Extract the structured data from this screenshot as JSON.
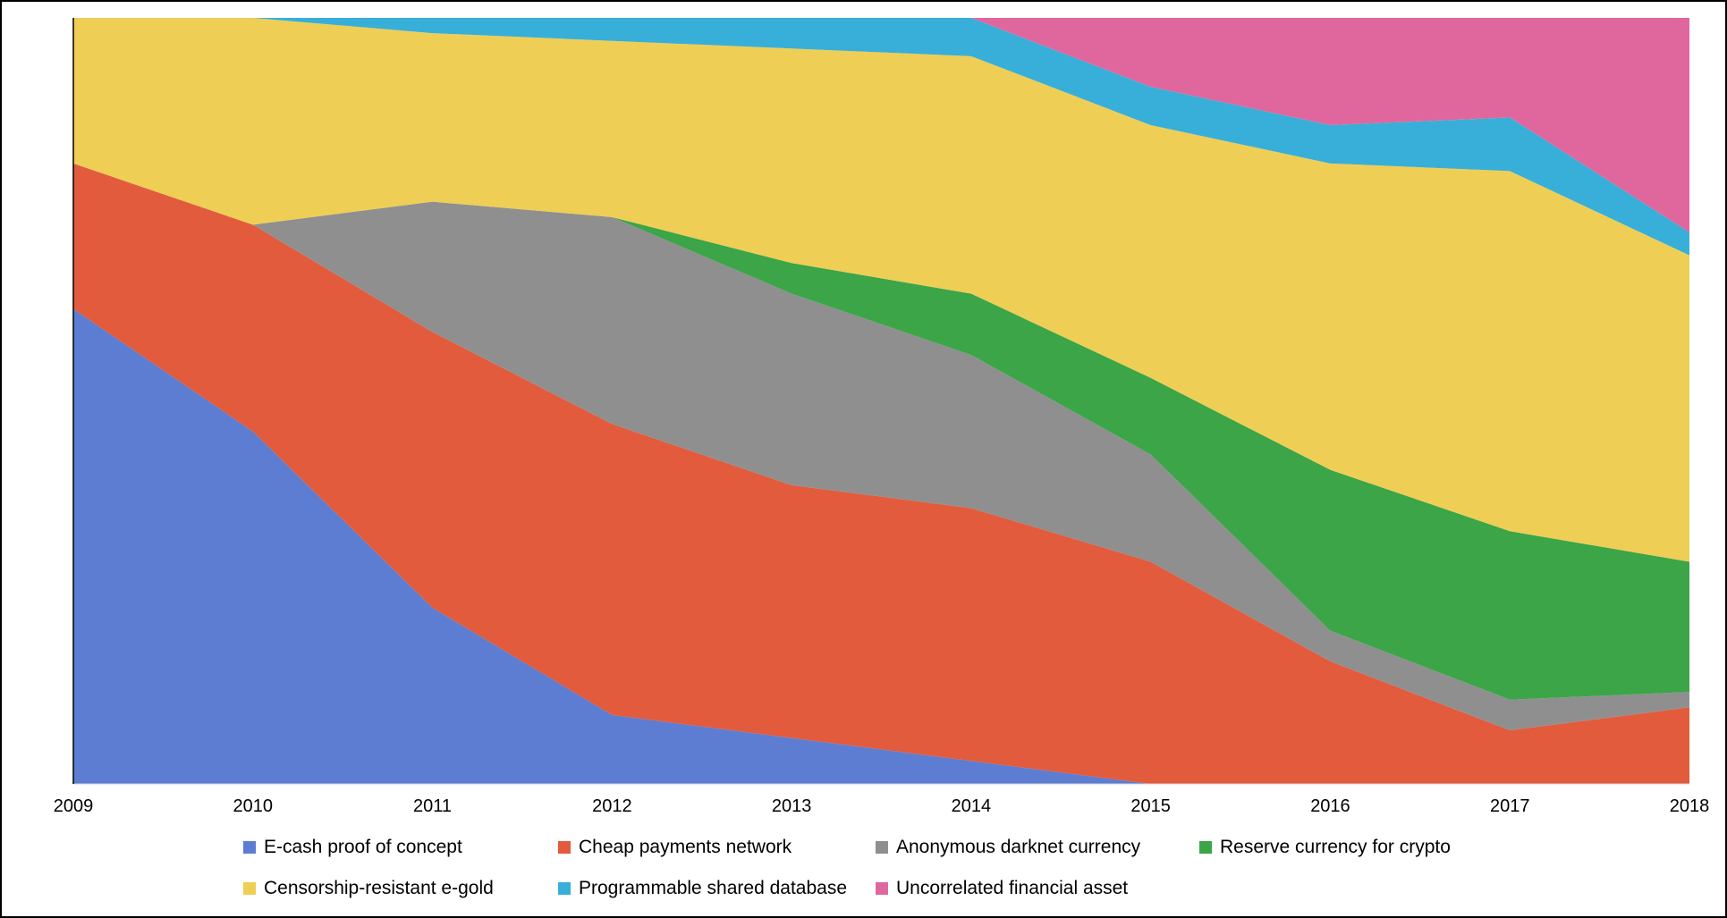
{
  "chart_data": {
    "type": "area",
    "stacked": true,
    "percent": true,
    "grid": false,
    "legend_position": "bottom",
    "xlabel": "",
    "ylabel": "",
    "ylim": [
      0,
      100
    ],
    "x": [
      "2009",
      "2010",
      "2011",
      "2012",
      "2013",
      "2014",
      "2015",
      "2016",
      "2017",
      "2018"
    ],
    "series": [
      {
        "name": "E-cash proof of concept",
        "color": "#5C7DD2",
        "values": [
          62,
          46,
          23,
          9,
          6,
          3,
          0,
          0,
          0,
          0
        ]
      },
      {
        "name": "Cheap payments network",
        "color": "#E25B3D",
        "values": [
          19,
          27,
          36,
          38,
          33,
          33,
          29,
          16,
          7,
          10
        ]
      },
      {
        "name": "Anonymous darknet currency",
        "color": "#8F8F8F",
        "values": [
          0,
          0,
          17,
          27,
          25,
          20,
          14,
          4,
          4,
          2
        ]
      },
      {
        "name": "Reserve currency for crypto",
        "color": "#3BA548",
        "values": [
          0,
          0,
          0,
          0,
          4,
          8,
          10,
          21,
          22,
          17
        ]
      },
      {
        "name": "Censorship-resistant e-gold",
        "color": "#EFCE55",
        "values": [
          19,
          27,
          22,
          23,
          28,
          31,
          33,
          40,
          47,
          40
        ]
      },
      {
        "name": "Programmable shared database",
        "color": "#38AFD9",
        "values": [
          0,
          0,
          2,
          3,
          4,
          5,
          5,
          5,
          7,
          3
        ]
      },
      {
        "name": "Uncorrelated financial asset",
        "color": "#E0679E",
        "values": [
          0,
          0,
          0,
          0,
          0,
          0,
          9,
          14,
          13,
          28
        ]
      }
    ],
    "legend_rows": [
      [
        "E-cash proof of concept",
        "Cheap payments network",
        "Anonymous darknet currency",
        "Reserve currency for crypto"
      ],
      [
        "Censorship-resistant e-gold",
        "Programmable shared database",
        "Uncorrelated financial asset"
      ]
    ]
  },
  "axis_colors": {
    "left_axis_line": "#000000",
    "bottom_axis_line": "#d0d0d0",
    "tick_text": "#000000"
  }
}
